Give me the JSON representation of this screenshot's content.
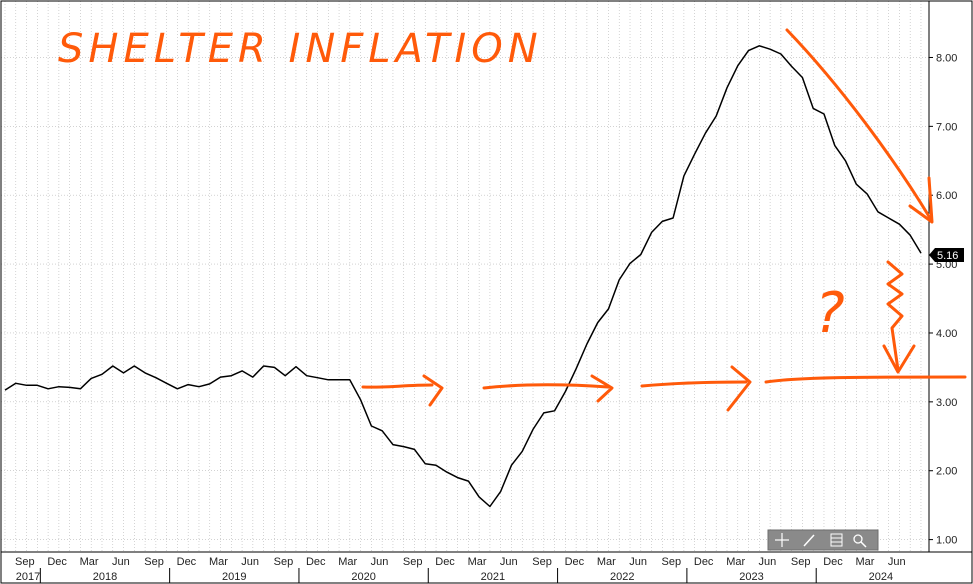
{
  "chart_data": {
    "type": "line",
    "title": "SHELTER INFLATION",
    "series": [
      {
        "values": [
          3.17,
          3.27,
          3.24,
          3.24,
          3.19,
          3.22,
          3.21,
          3.19,
          3.34,
          3.4,
          3.52,
          3.42,
          3.52,
          3.42,
          3.35,
          3.27,
          3.19,
          3.25,
          3.22,
          3.26,
          3.36,
          3.38,
          3.45,
          3.36,
          3.52,
          3.5,
          3.38,
          3.51,
          3.38,
          3.35,
          3.32,
          3.32,
          3.32,
          3.03,
          2.65,
          2.58,
          2.38,
          2.35,
          2.31,
          2.1,
          2.08,
          1.98,
          1.9,
          1.85,
          1.62,
          1.48,
          1.7,
          2.08,
          2.28,
          2.6,
          2.84,
          2.87,
          3.15,
          3.48,
          3.84,
          4.15,
          4.35,
          4.77,
          5.01,
          5.14,
          5.46,
          5.62,
          5.67,
          6.28,
          6.6,
          6.9,
          7.15,
          7.56,
          7.88,
          8.1,
          8.17,
          8.12,
          8.05,
          7.87,
          7.71,
          7.26,
          7.18,
          6.72,
          6.5,
          6.16,
          6.02,
          5.76,
          5.67,
          5.58,
          5.42,
          5.16
        ]
      }
    ],
    "x": {
      "months": [
        "Sep",
        "Dec",
        "Mar",
        "Jun",
        "Sep",
        "Dec",
        "Mar",
        "Jun",
        "Sep",
        "Dec",
        "Mar",
        "Jun",
        "Sep",
        "Dec",
        "Mar",
        "Jun",
        "Sep",
        "Dec",
        "Mar",
        "Jun",
        "Sep",
        "Dec",
        "Mar",
        "Jun",
        "Sep",
        "Dec",
        "Mar",
        "Jun"
      ],
      "years": [
        "2017",
        "2018",
        "2019",
        "2020",
        "2021",
        "2022",
        "2023",
        "2024"
      ]
    },
    "ylim": [
      0.82,
      8.82
    ],
    "yticks": [
      "1.00",
      "2.00",
      "3.00",
      "4.00",
      "5.00",
      "6.00",
      "7.00",
      "8.00"
    ],
    "last_value": "5.16",
    "annotation": "?",
    "grid": true
  },
  "colors": {
    "series": "#000000",
    "annotation": "#ff5a0a",
    "grid": "#b8b8b8",
    "label_bg": "#000000",
    "toolbar": "#8a8a8a"
  },
  "toolbar": {
    "icons": [
      "move-icon",
      "draw-icon",
      "table-icon",
      "zoom-icon"
    ]
  }
}
